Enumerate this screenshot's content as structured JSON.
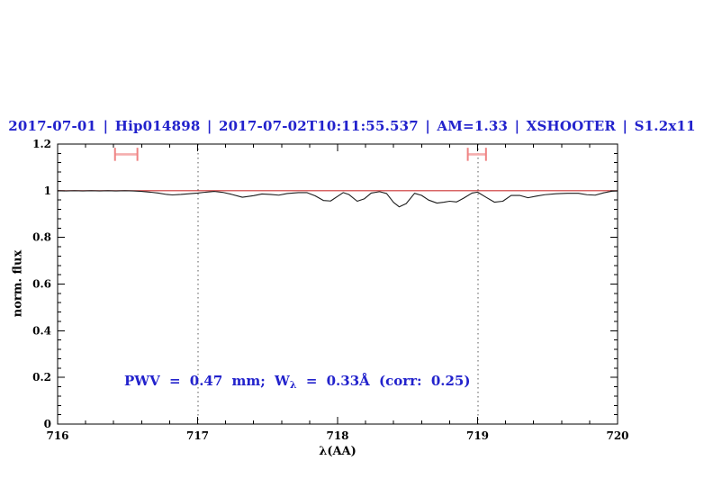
{
  "title": {
    "text": "2017-07-01 | Hip014898 | 2017-07-02T10:11:55.537 | AM=1.33 | XSHOOTER | S1.2x11"
  },
  "annotation": {
    "prefix": "PWV = 0.47 mm; W",
    "subscript": "λ",
    "suffix": " = 0.33Å (corr: 0.25)"
  },
  "colors": {
    "accent_blue": "#2222cc",
    "reference_red": "#cc3333",
    "marker_salmon": "#ef8383",
    "marker_salmon_light": "#f5adad",
    "spectrum_black": "#1c1c1c",
    "dotted_gray": "#555555",
    "frame_black": "#000000",
    "background": "#ffffff"
  },
  "chart_data": {
    "type": "line",
    "title": "2017-07-01 | Hip014898 | 2017-07-02T10:11:55.537 | AM=1.33 | XSHOOTER | S1.2x11",
    "xlabel": "λ(AA)",
    "ylabel": "norm. flux",
    "xlim": [
      716,
      720
    ],
    "ylim": [
      0,
      1.2
    ],
    "x_major_ticks": [
      716,
      717,
      718,
      719,
      720
    ],
    "x_tick_labels": [
      "716",
      "717",
      "718",
      "719",
      "720"
    ],
    "x_minor_step": 0.2,
    "y_major_ticks": [
      0,
      0.2,
      0.4,
      0.6,
      0.8,
      1,
      1.2
    ],
    "y_tick_labels": [
      "0",
      "0.2",
      "0.4",
      "0.6",
      "0.8",
      "1",
      "1.2"
    ],
    "y_minor_step": 0.04,
    "grid": "off",
    "legend": "none",
    "vertical_dotted_lines": [
      717,
      719
    ],
    "reference_line": {
      "y": 1.0
    },
    "range_markers": [
      {
        "x_start": 716.41,
        "x_end": 716.57,
        "y": 1.156,
        "cap_half_height": 0.028
      },
      {
        "x_start": 718.93,
        "x_end": 719.06,
        "y": 1.156,
        "cap_half_height": 0.028
      }
    ],
    "series": [
      {
        "name": "normalized telluric spectrum",
        "points": [
          [
            716.0,
            1.0
          ],
          [
            716.06,
            0.999
          ],
          [
            716.12,
            1.0
          ],
          [
            716.18,
            0.999
          ],
          [
            716.24,
            1.0
          ],
          [
            716.3,
            0.999
          ],
          [
            716.36,
            1.0
          ],
          [
            716.42,
            0.999
          ],
          [
            716.48,
            1.0
          ],
          [
            716.54,
            0.999
          ],
          [
            716.6,
            0.997
          ],
          [
            716.66,
            0.994
          ],
          [
            716.72,
            0.99
          ],
          [
            716.78,
            0.984
          ],
          [
            716.82,
            0.982
          ],
          [
            716.88,
            0.984
          ],
          [
            716.94,
            0.987
          ],
          [
            717.0,
            0.99
          ],
          [
            717.06,
            0.994
          ],
          [
            717.12,
            0.997
          ],
          [
            717.18,
            0.993
          ],
          [
            717.24,
            0.985
          ],
          [
            717.32,
            0.972
          ],
          [
            717.4,
            0.979
          ],
          [
            717.46,
            0.986
          ],
          [
            717.52,
            0.984
          ],
          [
            717.58,
            0.981
          ],
          [
            717.64,
            0.988
          ],
          [
            717.72,
            0.992
          ],
          [
            717.78,
            0.992
          ],
          [
            717.84,
            0.978
          ],
          [
            717.9,
            0.958
          ],
          [
            717.95,
            0.956
          ],
          [
            718.0,
            0.976
          ],
          [
            718.04,
            0.992
          ],
          [
            718.08,
            0.984
          ],
          [
            718.14,
            0.955
          ],
          [
            718.19,
            0.965
          ],
          [
            718.24,
            0.99
          ],
          [
            718.3,
            0.996
          ],
          [
            718.35,
            0.988
          ],
          [
            718.4,
            0.95
          ],
          [
            718.44,
            0.931
          ],
          [
            718.49,
            0.945
          ],
          [
            718.55,
            0.989
          ],
          [
            718.6,
            0.98
          ],
          [
            718.65,
            0.96
          ],
          [
            718.71,
            0.947
          ],
          [
            718.76,
            0.951
          ],
          [
            718.8,
            0.955
          ],
          [
            718.85,
            0.952
          ],
          [
            718.9,
            0.968
          ],
          [
            718.96,
            0.99
          ],
          [
            719.0,
            0.994
          ],
          [
            719.06,
            0.972
          ],
          [
            719.12,
            0.951
          ],
          [
            719.18,
            0.955
          ],
          [
            719.24,
            0.98
          ],
          [
            719.3,
            0.98
          ],
          [
            719.36,
            0.97
          ],
          [
            719.42,
            0.977
          ],
          [
            719.48,
            0.983
          ],
          [
            719.56,
            0.987
          ],
          [
            719.64,
            0.989
          ],
          [
            719.72,
            0.989
          ],
          [
            719.78,
            0.983
          ],
          [
            719.84,
            0.981
          ],
          [
            719.9,
            0.991
          ],
          [
            719.96,
            0.998
          ],
          [
            720.0,
            0.999
          ]
        ]
      }
    ]
  }
}
